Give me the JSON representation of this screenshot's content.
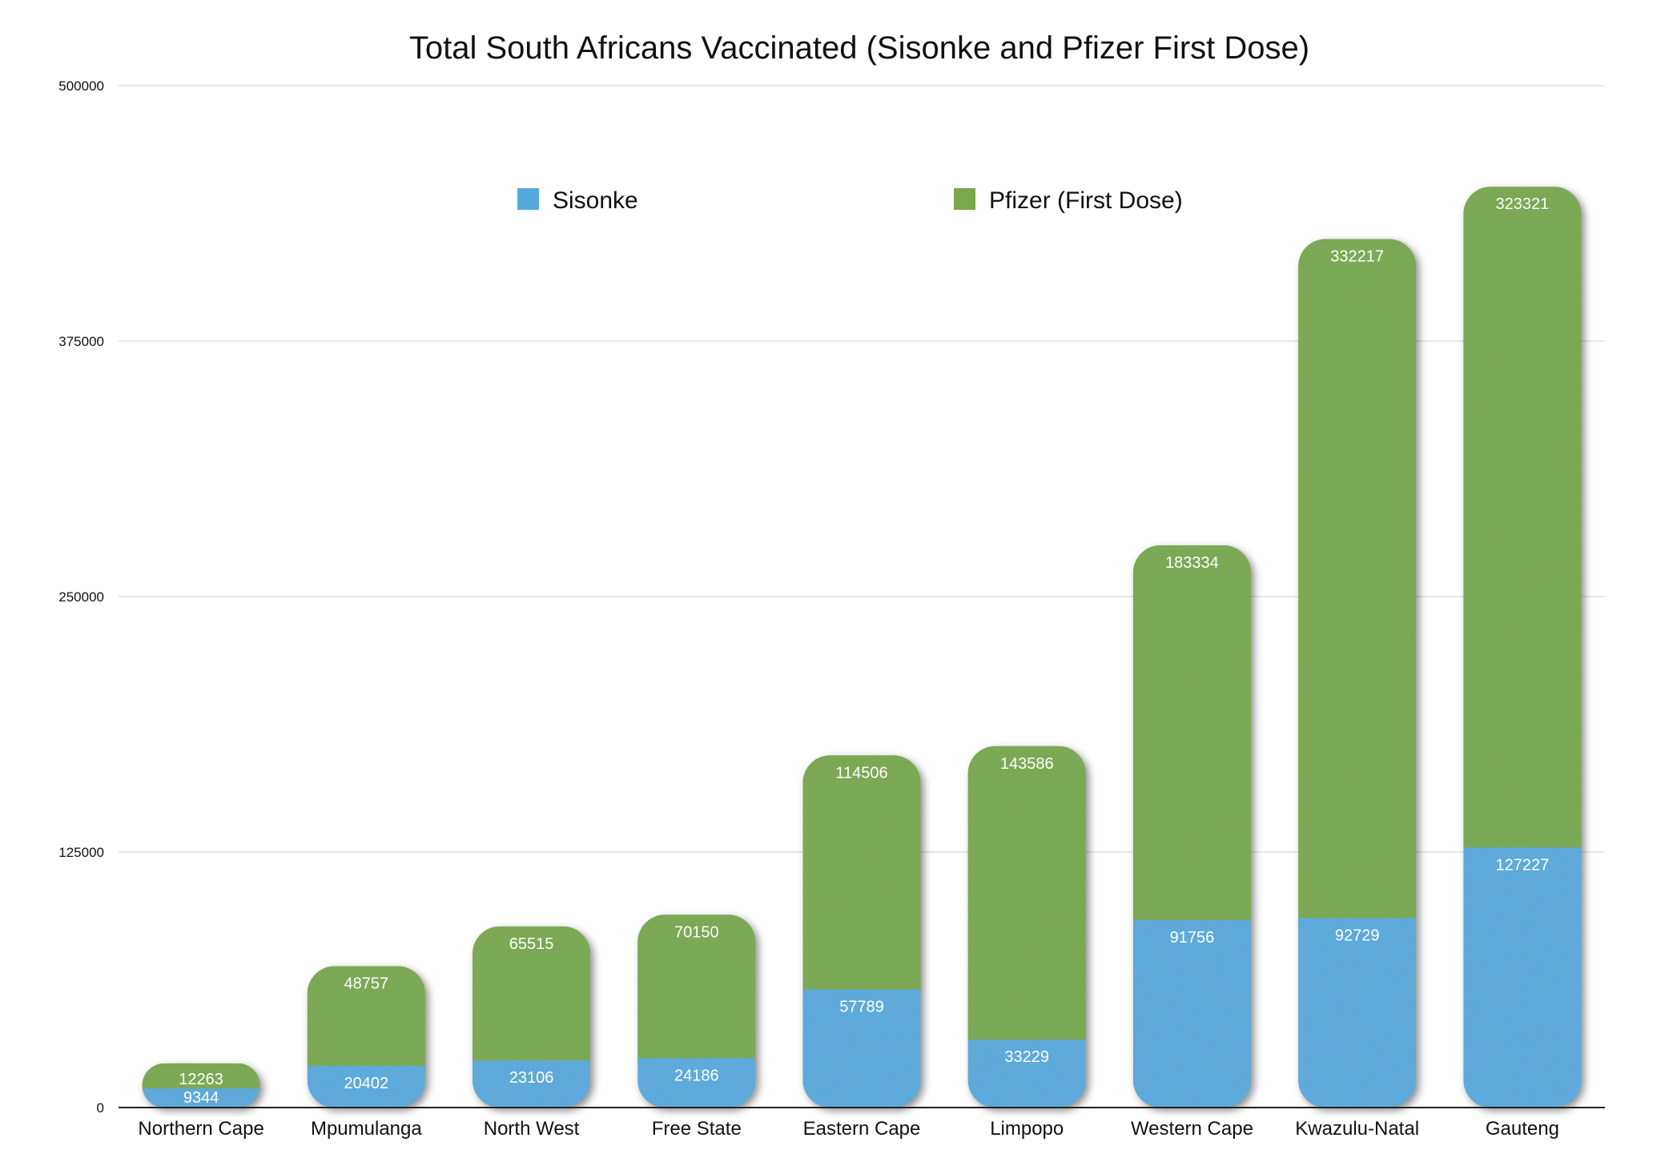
{
  "chart_data": {
    "type": "bar",
    "stacked": true,
    "title": "Total South Africans Vaccinated (Sisonke and Pfizer First Dose)",
    "xlabel": "",
    "ylabel": "",
    "ylim": [
      0,
      500000
    ],
    "yticks": [
      0,
      125000,
      250000,
      375000,
      500000
    ],
    "grid": true,
    "legend_position": "top-center",
    "categories": [
      "Northern Cape",
      "Mpumulanga",
      "North West",
      "Free State",
      "Eastern Cape",
      "Limpopo",
      "Western Cape",
      "Kwazulu-Natal",
      "Gauteng"
    ],
    "series": [
      {
        "name": "Sisonke",
        "color": "#54a9dd",
        "values": [
          9344,
          20402,
          23106,
          24186,
          57789,
          33229,
          91756,
          92729,
          127227
        ]
      },
      {
        "name": "Pfizer (First Dose)",
        "color": "#77a84a",
        "values": [
          12263,
          48757,
          65515,
          70150,
          114506,
          143586,
          183334,
          332217,
          323321
        ]
      }
    ]
  }
}
